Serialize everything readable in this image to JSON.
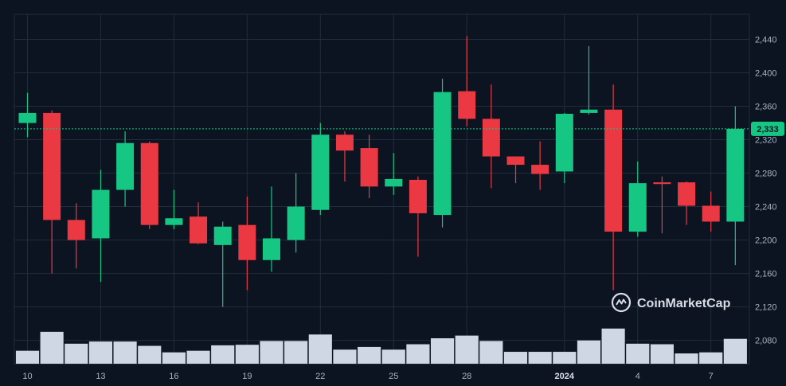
{
  "chart_data": {
    "type": "candlestick",
    "price_axis": {
      "ticks": [
        2080,
        2120,
        2160,
        2200,
        2240,
        2280,
        2320,
        2360,
        2400,
        2440
      ],
      "range": [
        2052,
        2470
      ],
      "tick_labels": [
        "2,080",
        "2,120",
        "2,160",
        "2,200",
        "2,240",
        "2,280",
        "2,320",
        "2,360",
        "2,400",
        "2,440"
      ]
    },
    "x_labels": [
      {
        "index": 0,
        "label": "10"
      },
      {
        "index": 3,
        "label": "13"
      },
      {
        "index": 6,
        "label": "16"
      },
      {
        "index": 9,
        "label": "19"
      },
      {
        "index": 12,
        "label": "22"
      },
      {
        "index": 15,
        "label": "25"
      },
      {
        "index": 18,
        "label": "28"
      },
      {
        "index": 22,
        "label": "2024",
        "bold": true
      },
      {
        "index": 25,
        "label": "4"
      },
      {
        "index": 28,
        "label": "7"
      }
    ],
    "current_price": {
      "value": 2333,
      "label": "2,333"
    },
    "colors": {
      "up": "#16c784",
      "down": "#ea3943",
      "volume": "#cfd6e4",
      "grid": "#222c3a",
      "background": "#0d1421"
    },
    "candles": [
      {
        "o": 2340,
        "h": 2376,
        "l": 2323,
        "c": 2352,
        "v": 0.24
      },
      {
        "o": 2352,
        "h": 2355,
        "l": 2160,
        "c": 2224,
        "v": 0.59
      },
      {
        "o": 2224,
        "h": 2244,
        "l": 2166,
        "c": 2200,
        "v": 0.37
      },
      {
        "o": 2202,
        "h": 2284,
        "l": 2150,
        "c": 2260,
        "v": 0.41
      },
      {
        "o": 2260,
        "h": 2330,
        "l": 2240,
        "c": 2316,
        "v": 0.41
      },
      {
        "o": 2316,
        "h": 2318,
        "l": 2213,
        "c": 2218,
        "v": 0.33
      },
      {
        "o": 2218,
        "h": 2260,
        "l": 2213,
        "c": 2226,
        "v": 0.21
      },
      {
        "o": 2228,
        "h": 2245,
        "l": 2195,
        "c": 2196,
        "v": 0.24
      },
      {
        "o": 2194,
        "h": 2222,
        "l": 2120,
        "c": 2216,
        "v": 0.34
      },
      {
        "o": 2218,
        "h": 2252,
        "l": 2140,
        "c": 2176,
        "v": 0.35
      },
      {
        "o": 2176,
        "h": 2264,
        "l": 2162,
        "c": 2202,
        "v": 0.42
      },
      {
        "o": 2200,
        "h": 2280,
        "l": 2185,
        "c": 2240,
        "v": 0.42
      },
      {
        "o": 2236,
        "h": 2340,
        "l": 2230,
        "c": 2326,
        "v": 0.54
      },
      {
        "o": 2326,
        "h": 2330,
        "l": 2270,
        "c": 2307,
        "v": 0.26
      },
      {
        "o": 2310,
        "h": 2326,
        "l": 2250,
        "c": 2264,
        "v": 0.31
      },
      {
        "o": 2264,
        "h": 2304,
        "l": 2254,
        "c": 2273,
        "v": 0.26
      },
      {
        "o": 2272,
        "h": 2276,
        "l": 2180,
        "c": 2232,
        "v": 0.36
      },
      {
        "o": 2230,
        "h": 2393,
        "l": 2215,
        "c": 2377,
        "v": 0.47
      },
      {
        "o": 2378,
        "h": 2444,
        "l": 2336,
        "c": 2345,
        "v": 0.52
      },
      {
        "o": 2345,
        "h": 2386,
        "l": 2262,
        "c": 2300,
        "v": 0.42
      },
      {
        "o": 2300,
        "h": 2300,
        "l": 2268,
        "c": 2290,
        "v": 0.22
      },
      {
        "o": 2290,
        "h": 2318,
        "l": 2260,
        "c": 2279,
        "v": 0.22
      },
      {
        "o": 2282,
        "h": 2352,
        "l": 2268,
        "c": 2351,
        "v": 0.22
      },
      {
        "o": 2352,
        "h": 2432,
        "l": 2350,
        "c": 2356,
        "v": 0.43
      },
      {
        "o": 2356,
        "h": 2386,
        "l": 2140,
        "c": 2210,
        "v": 0.65
      },
      {
        "o": 2210,
        "h": 2294,
        "l": 2204,
        "c": 2268,
        "v": 0.37
      },
      {
        "o": 2269,
        "h": 2276,
        "l": 2208,
        "c": 2267,
        "v": 0.36
      },
      {
        "o": 2269,
        "h": 2270,
        "l": 2218,
        "c": 2241,
        "v": 0.19
      },
      {
        "o": 2241,
        "h": 2258,
        "l": 2210,
        "c": 2222,
        "v": 0.21
      },
      {
        "o": 2222,
        "h": 2360,
        "l": 2170,
        "c": 2333,
        "v": 0.46
      }
    ]
  },
  "watermark": {
    "text": "CoinMarketCap",
    "icon": "coinmarketcap-logo-icon"
  }
}
